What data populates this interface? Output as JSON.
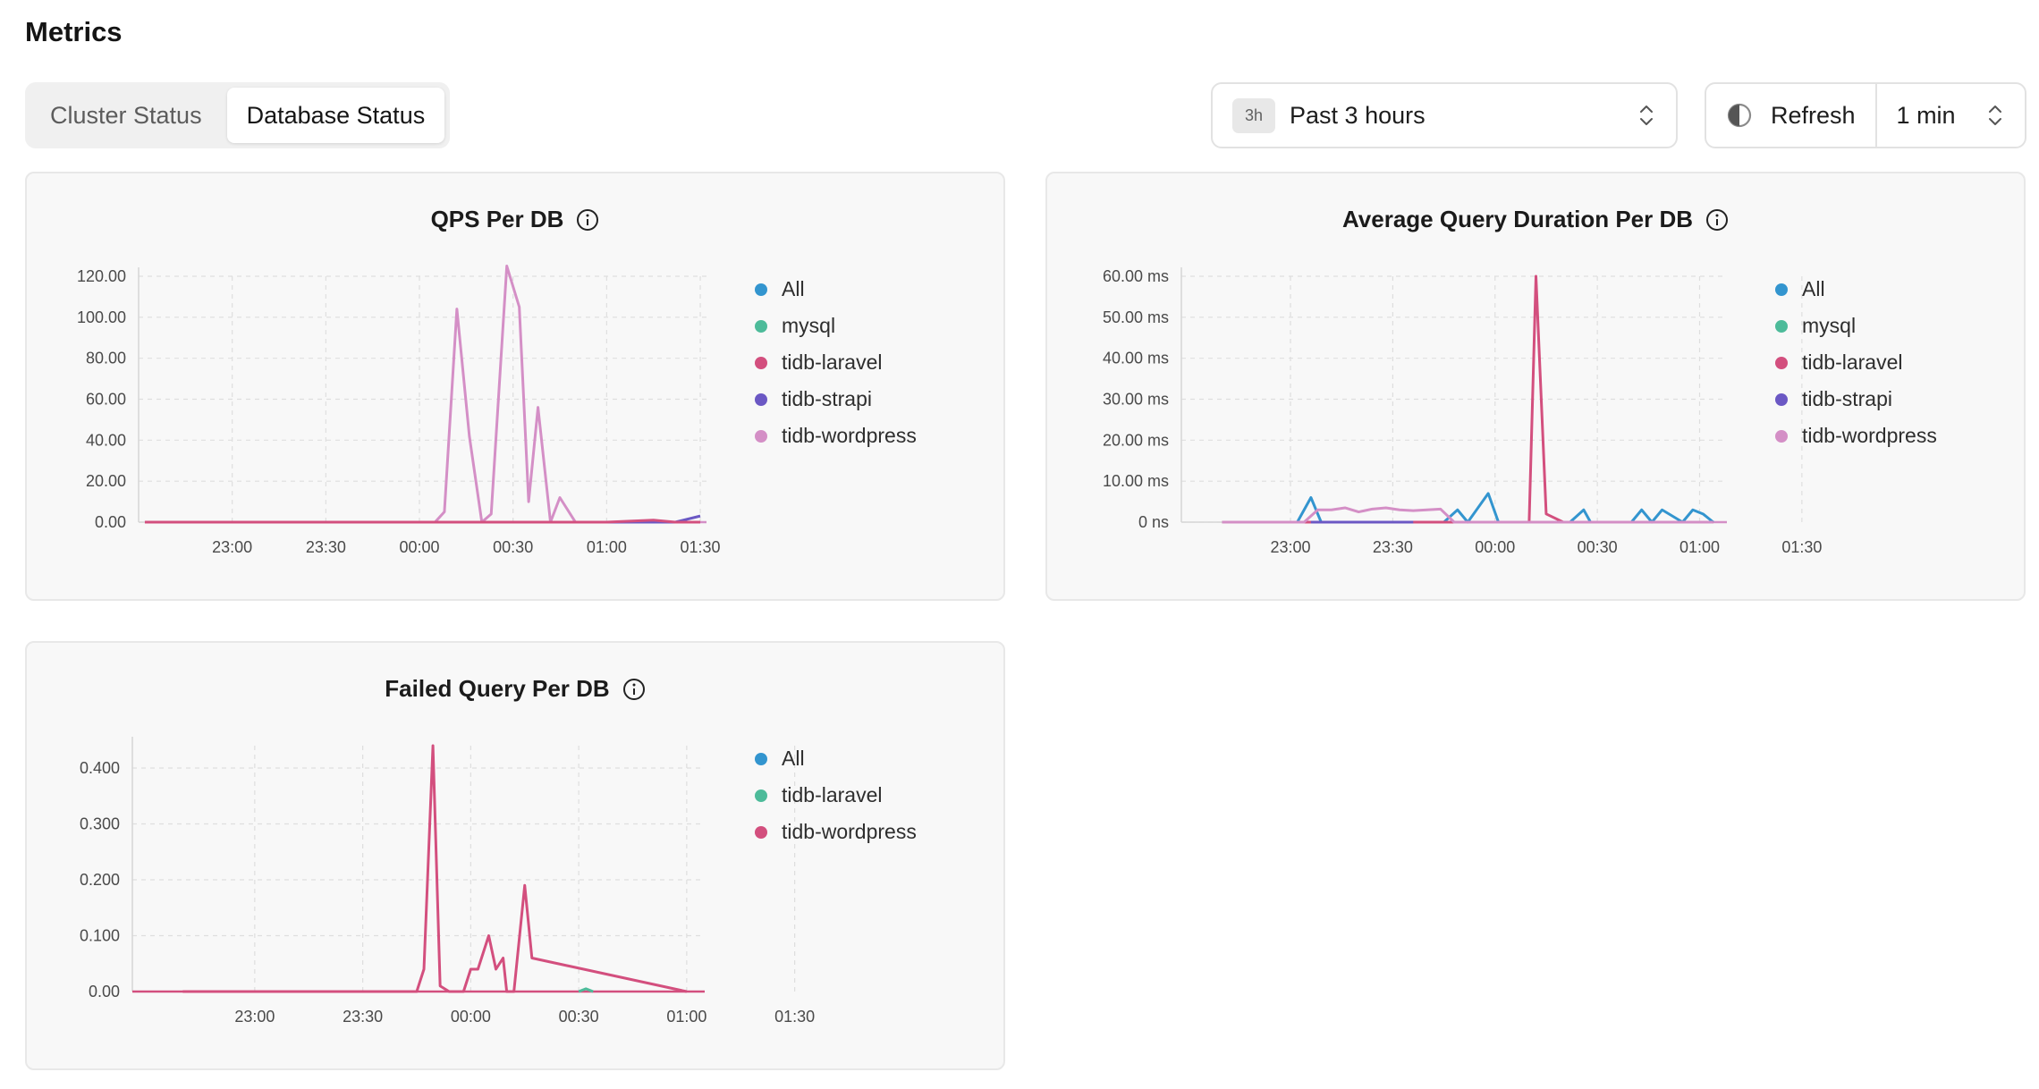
{
  "page": {
    "title": "Metrics"
  },
  "tabs": [
    {
      "label": "Cluster Status",
      "active": false
    },
    {
      "label": "Database Status",
      "active": true
    }
  ],
  "time_range": {
    "badge": "3h",
    "label": "Past 3 hours"
  },
  "refresh": {
    "label": "Refresh",
    "interval": "1 min"
  },
  "colors": {
    "all": "#3395cf",
    "mysql": "#4dbb9a",
    "laravel": "#d34f7e",
    "strapi": "#6b58c4",
    "wordpress": "#d48fc6",
    "grid": "#dedede",
    "card_bg": "#f8f8f8"
  },
  "x_ticks": [
    "23:00",
    "23:30",
    "00:00",
    "00:30",
    "01:00",
    "01:30"
  ],
  "charts": [
    {
      "id": "qps",
      "title": "QPS Per DB",
      "y_ticks": [
        "0.00",
        "20.00",
        "40.00",
        "60.00",
        "80.00",
        "100.00",
        "120.00"
      ],
      "legend": [
        {
          "label": "All",
          "color": "#3395cf"
        },
        {
          "label": "mysql",
          "color": "#4dbb9a"
        },
        {
          "label": "tidb-laravel",
          "color": "#d34f7e"
        },
        {
          "label": "tidb-strapi",
          "color": "#6b58c4"
        },
        {
          "label": "tidb-wordpress",
          "color": "#d48fc6"
        }
      ]
    },
    {
      "id": "duration",
      "title": "Average Query Duration Per DB",
      "y_ticks": [
        "0 ns",
        "10.00 ms",
        "20.00 ms",
        "30.00 ms",
        "40.00 ms",
        "50.00 ms",
        "60.00 ms"
      ],
      "legend": [
        {
          "label": "All",
          "color": "#3395cf"
        },
        {
          "label": "mysql",
          "color": "#4dbb9a"
        },
        {
          "label": "tidb-laravel",
          "color": "#d34f7e"
        },
        {
          "label": "tidb-strapi",
          "color": "#6b58c4"
        },
        {
          "label": "tidb-wordpress",
          "color": "#d48fc6"
        }
      ]
    },
    {
      "id": "failed",
      "title": "Failed Query Per DB",
      "y_ticks": [
        "0.00",
        "0.100",
        "0.200",
        "0.300",
        "0.400"
      ],
      "legend": [
        {
          "label": "All",
          "color": "#3395cf"
        },
        {
          "label": "tidb-laravel",
          "color": "#4dbb9a"
        },
        {
          "label": "tidb-wordpress",
          "color": "#d34f7e"
        }
      ]
    }
  ],
  "chart_data": [
    {
      "type": "line",
      "title": "QPS Per DB",
      "xlabel": "",
      "ylabel": "",
      "x_ticks": [
        "23:00",
        "23:30",
        "00:00",
        "00:30",
        "01:00",
        "01:30"
      ],
      "ylim": [
        0,
        120
      ],
      "x_range_minutes": [
        -30,
        150
      ],
      "x_minutes": [
        -28,
        35,
        65,
        68,
        72,
        76,
        80,
        83,
        88,
        92,
        95,
        98,
        102,
        105,
        110,
        120,
        135,
        142,
        150
      ],
      "series": [
        {
          "name": "tidb-wordpress",
          "values": [
            0,
            0,
            0,
            5,
            104,
            42,
            0,
            4,
            125,
            105,
            10,
            56,
            0,
            12,
            0,
            0,
            0,
            0,
            0
          ]
        },
        {
          "name": "tidb-strapi",
          "values": [
            0,
            0,
            0,
            0,
            0,
            0,
            0,
            0,
            0,
            0,
            0,
            0,
            0,
            0,
            0,
            0,
            0,
            0,
            3
          ]
        },
        {
          "name": "tidb-laravel",
          "values": [
            0,
            0,
            0,
            0,
            0,
            0,
            0,
            0,
            0,
            0,
            0,
            0,
            0,
            0,
            0,
            0,
            1,
            0,
            0
          ]
        }
      ]
    },
    {
      "type": "line",
      "title": "Average Query Duration Per DB",
      "xlabel": "",
      "ylabel": "",
      "x_ticks": [
        "23:00",
        "23:30",
        "00:00",
        "00:30",
        "01:00",
        "01:30"
      ],
      "ylim": [
        0,
        60
      ],
      "series": [
        {
          "name": "All",
          "x_minutes": [
            -20,
            2,
            6,
            9,
            45,
            49,
            52,
            58,
            61,
            82,
            86,
            88,
            100,
            103,
            106,
            109,
            115,
            118,
            121,
            124
          ],
          "values": [
            0,
            0,
            6,
            0,
            0,
            3,
            0,
            7,
            0,
            0,
            3,
            0,
            0,
            3,
            0,
            3,
            0,
            3,
            2,
            0
          ]
        },
        {
          "name": "tidb-laravel",
          "x_minutes": [
            -20,
            65,
            70,
            72,
            75,
            80,
            124
          ],
          "values": [
            0,
            0,
            0,
            60,
            2,
            0,
            0
          ]
        },
        {
          "name": "tidb-wordpress",
          "x_minutes": [
            -20,
            4,
            8,
            12,
            16,
            20,
            24,
            28,
            32,
            36,
            40,
            44,
            48,
            124
          ],
          "values": [
            0,
            0,
            3,
            3,
            3.5,
            2.5,
            3.2,
            3.5,
            3,
            2.8,
            3,
            3.2,
            0,
            0
          ]
        },
        {
          "name": "tidb-strapi",
          "x_minutes": [
            6,
            36
          ],
          "values": [
            0,
            0
          ]
        }
      ]
    },
    {
      "type": "line",
      "title": "Failed Query Per DB",
      "xlabel": "",
      "ylabel": "",
      "x_ticks": [
        "23:00",
        "23:30",
        "00:00",
        "00:30",
        "01:00",
        "01:30"
      ],
      "ylim": [
        0,
        0.44
      ],
      "series": [
        {
          "name": "tidb-wordpress",
          "x_minutes": [
            -20,
            45,
            47,
            49.5,
            51.5,
            54,
            58,
            60,
            62,
            65,
            67,
            69,
            70,
            72,
            75,
            77,
            120
          ],
          "values": [
            0,
            0,
            0.04,
            0.44,
            0.01,
            0,
            0,
            0.04,
            0.04,
            0.1,
            0.04,
            0.06,
            0,
            0,
            0.19,
            0.06,
            0
          ]
        },
        {
          "name": "tidb-laravel",
          "x_minutes": [
            90,
            92,
            94
          ],
          "values": [
            0,
            0.005,
            0
          ]
        }
      ]
    }
  ]
}
